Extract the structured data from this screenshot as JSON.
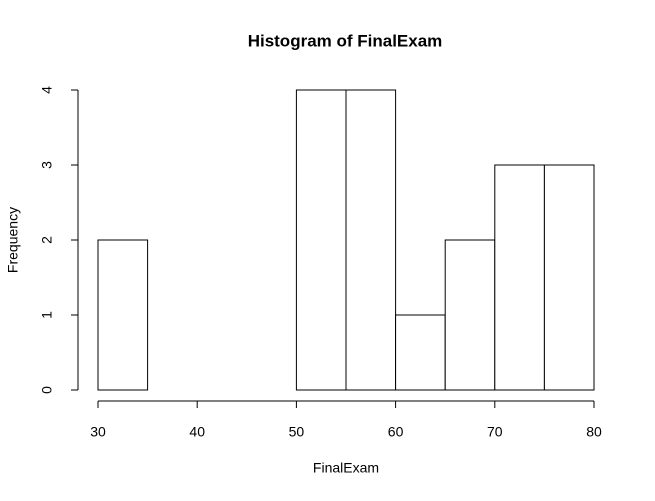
{
  "chart_data": {
    "type": "histogram",
    "title": "Histogram of FinalExam",
    "xlabel": "FinalExam",
    "ylabel": "Frequency",
    "bins": [
      30,
      35,
      40,
      45,
      50,
      55,
      60,
      65,
      70,
      75,
      80
    ],
    "values": [
      2,
      0,
      0,
      0,
      4,
      4,
      1,
      2,
      3,
      3
    ],
    "color": "#ffffff",
    "xlim": [
      30,
      80
    ],
    "xticks": [
      30,
      40,
      50,
      60,
      70,
      80
    ],
    "ylim": [
      0,
      4
    ],
    "yticks": [
      0,
      1,
      2,
      3,
      4
    ]
  }
}
